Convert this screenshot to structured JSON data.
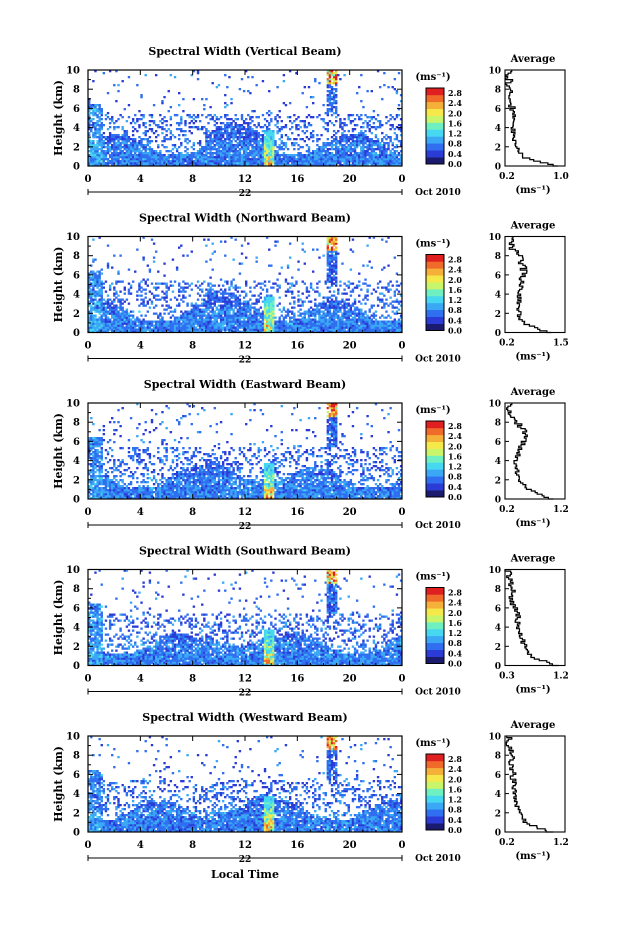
{
  "figure": {
    "panels": [
      {
        "title": "Spectral Width (Vertical Beam)",
        "avg_title": "Average",
        "avg_xticks": [
          "0.2",
          "1.0"
        ],
        "avg_xlim": [
          0.2,
          1.0
        ]
      },
      {
        "title": "Spectral Width (Northward Beam)",
        "avg_title": "Average",
        "avg_xticks": [
          "0.2",
          "1.5"
        ],
        "avg_xlim": [
          0.2,
          1.5
        ]
      },
      {
        "title": "Spectral Width (Eastward Beam)",
        "avg_title": "Average",
        "avg_xticks": [
          "0.2",
          "1.2"
        ],
        "avg_xlim": [
          0.2,
          1.2
        ]
      },
      {
        "title": "Spectral Width (Southward Beam)",
        "avg_title": "Average",
        "avg_xticks": [
          "0.3",
          "1.2"
        ],
        "avg_xlim": [
          0.3,
          1.2
        ]
      },
      {
        "title": "Spectral Width (Westward Beam)",
        "avg_title": "Average",
        "avg_xticks": [
          "0.2",
          "1.2"
        ],
        "avg_xlim": [
          0.2,
          1.2
        ]
      }
    ],
    "ylabel": "Height (km)",
    "yticks": [
      "0",
      "2",
      "4",
      "6",
      "8",
      "10"
    ],
    "xticks": [
      "0",
      "4",
      "8",
      "12",
      "16",
      "20",
      "0"
    ],
    "date_day": "22",
    "date_text": "Oct 2010",
    "colorbar_unit": "(ms⁻¹)",
    "colorbar_ticks": [
      "2.8",
      "2.4",
      "2.0",
      "1.6",
      "1.2",
      "0.8",
      "0.4",
      "0.0"
    ],
    "avg_xlabel": "(ms⁻¹)",
    "xlabel": "Local Time",
    "colors": [
      "#1a1a6e",
      "#2b3bd6",
      "#2f6ff0",
      "#3aa8f5",
      "#46d8f0",
      "#6ef0c0",
      "#c8f56a",
      "#f5e84a",
      "#f5b03a",
      "#f06a2a",
      "#e02020"
    ]
  },
  "chart_data": [
    {
      "type": "heatmap",
      "title": "Spectral Width (Vertical Beam)",
      "xlabel": "Local Time",
      "ylabel": "Height (km)",
      "xlim": [
        0,
        24
      ],
      "ylim": [
        0,
        10
      ],
      "color_range": [
        0.0,
        3.0
      ],
      "color_unit": "ms-1",
      "profile": {
        "title": "Average",
        "xlim": [
          0.2,
          1.0
        ],
        "heights": [
          0,
          1,
          2,
          3,
          4,
          5,
          6,
          7,
          8,
          9,
          10
        ],
        "values": [
          0.9,
          0.45,
          0.35,
          0.32,
          0.3,
          0.3,
          0.3,
          0.28,
          0.25,
          0.25,
          0.25
        ]
      }
    },
    {
      "type": "heatmap",
      "title": "Spectral Width (Northward Beam)",
      "xlabel": "Local Time",
      "ylabel": "Height (km)",
      "xlim": [
        0,
        24
      ],
      "ylim": [
        0,
        10
      ],
      "color_range": [
        0.0,
        3.0
      ],
      "color_unit": "ms-1",
      "profile": {
        "title": "Average",
        "xlim": [
          0.2,
          1.5
        ],
        "heights": [
          0,
          1,
          2,
          3,
          4,
          5,
          6,
          7,
          8,
          9,
          10
        ],
        "values": [
          1.2,
          0.6,
          0.5,
          0.5,
          0.5,
          0.55,
          0.6,
          0.6,
          0.5,
          0.35,
          0.3
        ]
      }
    },
    {
      "type": "heatmap",
      "title": "Spectral Width (Eastward Beam)",
      "xlabel": "Local Time",
      "ylabel": "Height (km)",
      "xlim": [
        0,
        24
      ],
      "ylim": [
        0,
        10
      ],
      "color_range": [
        0.0,
        3.0
      ],
      "color_unit": "ms-1",
      "profile": {
        "title": "Average",
        "xlim": [
          0.2,
          1.2
        ],
        "heights": [
          0,
          1,
          2,
          3,
          4,
          5,
          6,
          7,
          8,
          9,
          10
        ],
        "values": [
          1.0,
          0.6,
          0.45,
          0.4,
          0.35,
          0.45,
          0.5,
          0.55,
          0.4,
          0.3,
          0.25
        ]
      }
    },
    {
      "type": "heatmap",
      "title": "Spectral Width (Southward Beam)",
      "xlabel": "Local Time",
      "ylabel": "Height (km)",
      "xlim": [
        0,
        24
      ],
      "ylim": [
        0,
        10
      ],
      "color_range": [
        0.0,
        3.0
      ],
      "color_unit": "ms-1",
      "profile": {
        "title": "Average",
        "xlim": [
          0.3,
          1.2
        ],
        "heights": [
          0,
          1,
          2,
          3,
          4,
          5,
          6,
          7,
          8,
          9,
          10
        ],
        "values": [
          1.1,
          0.7,
          0.6,
          0.55,
          0.5,
          0.48,
          0.45,
          0.42,
          0.4,
          0.38,
          0.35
        ]
      }
    },
    {
      "type": "heatmap",
      "title": "Spectral Width (Westward Beam)",
      "xlabel": "Local Time",
      "ylabel": "Height (km)",
      "xlim": [
        0,
        24
      ],
      "ylim": [
        0,
        10
      ],
      "color_range": [
        0.0,
        3.0
      ],
      "color_unit": "ms-1",
      "profile": {
        "title": "Average",
        "xlim": [
          0.2,
          1.2
        ],
        "heights": [
          0,
          1,
          2,
          3,
          4,
          5,
          6,
          7,
          8,
          9,
          10
        ],
        "values": [
          1.0,
          0.55,
          0.45,
          0.4,
          0.35,
          0.35,
          0.35,
          0.3,
          0.3,
          0.28,
          0.28
        ]
      }
    }
  ]
}
